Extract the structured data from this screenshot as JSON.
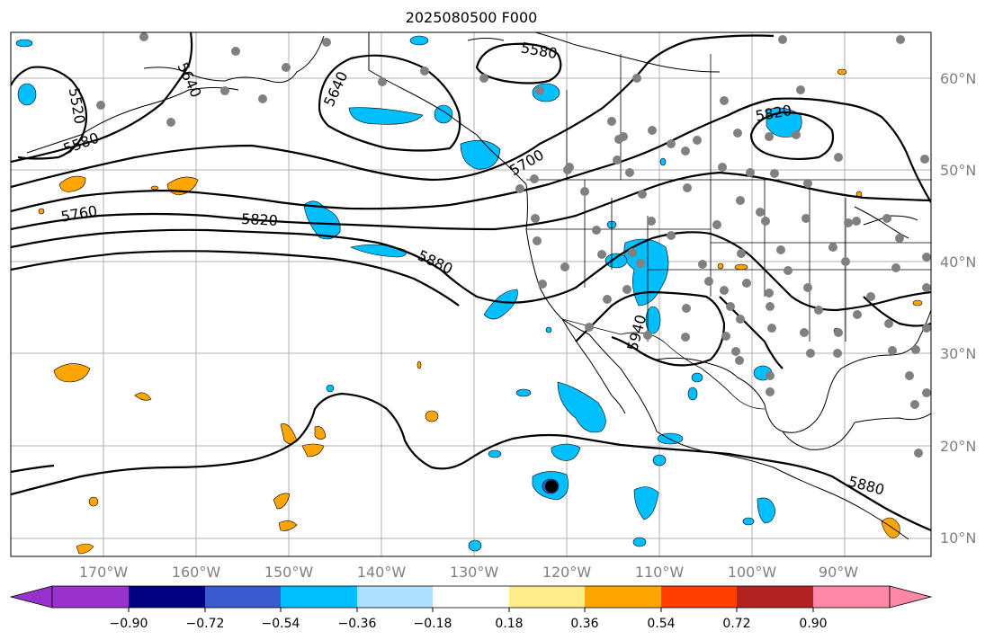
{
  "title": "2025080500 F000",
  "map": {
    "projection": "PlateCarree",
    "lon_range": [
      -180,
      -80
    ],
    "lat_range": [
      8,
      65
    ],
    "grid": true,
    "lon_ticks": [
      "170°W",
      "160°W",
      "150°W",
      "140°W",
      "130°W",
      "120°W",
      "110°W",
      "100°W",
      "90°W"
    ],
    "lat_ticks": [
      "10°N",
      "20°N",
      "30°N",
      "40°N",
      "50°N",
      "60°N"
    ],
    "contour_labels": [
      "5520",
      "5580",
      "5640",
      "5580",
      "5640",
      "5700",
      "5760",
      "5820",
      "5880",
      "5820",
      "5940",
      "5880"
    ]
  },
  "colorbar": {
    "colors": [
      "#9932CC",
      "#000080",
      "#3A5ACD",
      "#00BFFF",
      "#ADDFFF",
      "#FFFFFF",
      "#FFEC8B",
      "#FFA500",
      "#FF3E00",
      "#B22222",
      "#FF88A8",
      "#FF88A8"
    ],
    "tick_labels": [
      "−0.90",
      "−0.72",
      "−0.54",
      "−0.36",
      "−0.18",
      "0.18",
      "0.36",
      "0.54",
      "0.72",
      "0.90"
    ]
  },
  "colors": {
    "neg": "#00BFFF",
    "pos": "#FFA500",
    "grid": "#B0B0B0",
    "station": "#808080"
  }
}
